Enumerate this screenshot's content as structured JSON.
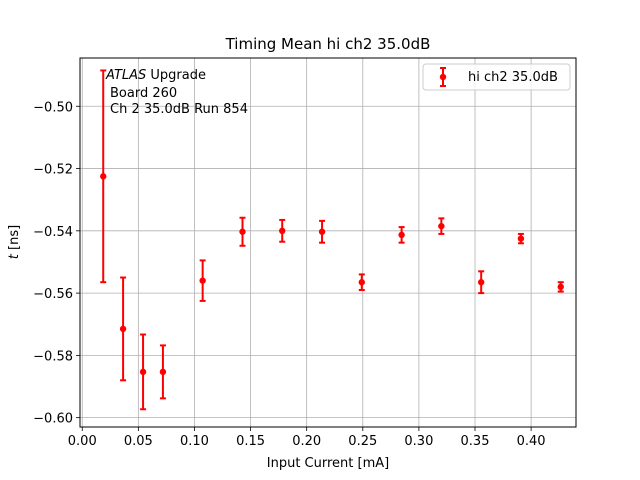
{
  "chart_data": {
    "type": "scatter",
    "title": "Timing Mean hi ch2 35.0dB",
    "xlabel": "Input Current [mA]",
    "ylabel_var": "t",
    "ylabel_unit": " [ns]",
    "xlim": [
      -0.002,
      0.44
    ],
    "ylim": [
      -0.603,
      -0.4845
    ],
    "xticks": [
      "0.00",
      "0.05",
      "0.10",
      "0.15",
      "0.20",
      "0.25",
      "0.30",
      "0.35",
      "0.40"
    ],
    "xtick_values": [
      0.0,
      0.05,
      0.1,
      0.15,
      0.2,
      0.25,
      0.3,
      0.35,
      0.4
    ],
    "yticks": [
      "−0.60",
      "−0.58",
      "−0.56",
      "−0.54",
      "−0.52",
      "−0.50"
    ],
    "ytick_values": [
      -0.6,
      -0.58,
      -0.56,
      -0.54,
      -0.52,
      -0.5
    ],
    "grid": true,
    "legend_position": "top-right",
    "annotation": {
      "line1_italic": "ATLAS",
      "line1_rest": " Upgrade",
      "line2": "Board 260",
      "line3": "Ch 2 35.0dB  Run 854"
    },
    "series": [
      {
        "name": "hi ch2 35.0dB",
        "color": "#ff0000",
        "x": [
          0.0187,
          0.0364,
          0.0542,
          0.0719,
          0.1073,
          0.1428,
          0.1782,
          0.2137,
          0.2491,
          0.2846,
          0.32,
          0.3555,
          0.3909,
          0.4264
        ],
        "y": [
          -0.5225,
          -0.5715,
          -0.5853,
          -0.5853,
          -0.556,
          -0.5403,
          -0.54,
          -0.5403,
          -0.5565,
          -0.5413,
          -0.5385,
          -0.5565,
          -0.5425,
          -0.558
        ],
        "yerr": [
          0.034,
          0.0165,
          0.012,
          0.0085,
          0.0065,
          0.0045,
          0.0035,
          0.0035,
          0.0025,
          0.0025,
          0.0025,
          0.0035,
          0.0015,
          0.0015
        ]
      }
    ]
  }
}
